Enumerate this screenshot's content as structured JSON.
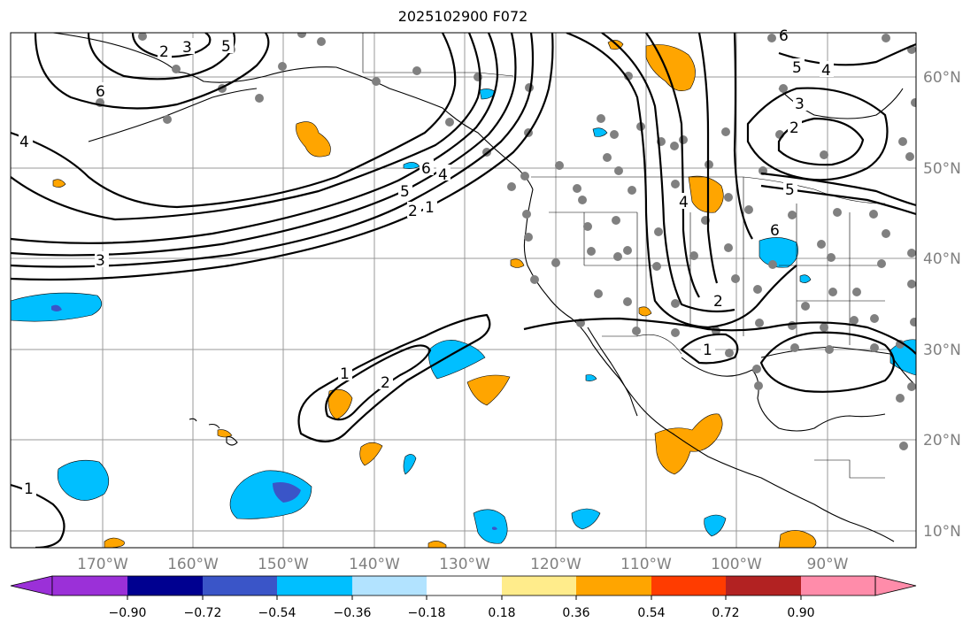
{
  "title": "2025102900 F072",
  "map": {
    "lat_labels": [
      "60°N",
      "50°N",
      "40°N",
      "30°N",
      "20°N",
      "10°N"
    ],
    "lon_labels": [
      "170°W",
      "160°W",
      "150°W",
      "140°W",
      "130°W",
      "120°W",
      "110°W",
      "100°W",
      "90°W"
    ],
    "contour_labels": [
      "1",
      "2",
      "3",
      "4",
      "5",
      "6"
    ],
    "colors": {
      "grid": "#999999",
      "station": "#808080",
      "coast": "#000000"
    }
  },
  "colorbar": {
    "labels": [
      "−0.90",
      "−0.72",
      "−0.54",
      "−0.36",
      "−0.18",
      "0.18",
      "0.36",
      "0.54",
      "0.72",
      "0.90"
    ],
    "colors": [
      "#9b30d8",
      "#000090",
      "#3a55c8",
      "#00bfff",
      "#b2e3ff",
      "#ffffff",
      "#ffec8b",
      "#ffa500",
      "#ff3c00",
      "#b22222",
      "#ff8caa"
    ]
  }
}
